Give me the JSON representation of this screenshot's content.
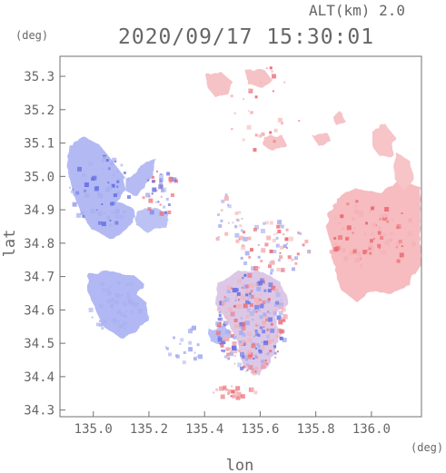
{
  "header": {
    "altitude_label": "ALT(km)  2.0",
    "timestamp": "2020/09/17 15:30:01"
  },
  "axes": {
    "x_label": "lon",
    "x_unit": "(deg)",
    "y_label": "lat",
    "y_unit": "(deg)",
    "x_ticks": [
      "135.0",
      "135.2",
      "135.4",
      "135.6",
      "135.8",
      "136.0"
    ],
    "y_ticks": [
      "35.3",
      "35.2",
      "35.1",
      "35.0",
      "34.9",
      "34.8",
      "34.7",
      "34.6",
      "34.5",
      "34.4",
      "34.3"
    ]
  },
  "chart_data": {
    "type": "heatmap",
    "x_range": [
      134.88,
      136.18
    ],
    "y_range": [
      34.28,
      35.36
    ],
    "grid": false,
    "colors": {
      "negative": "#a9b0f0",
      "positive": "#f4b2b6",
      "strong_negative": "#6a74e6",
      "strong_positive": "#ec6e76"
    },
    "x_ticks": [
      135.0,
      135.2,
      135.4,
      135.6,
      135.8,
      136.0
    ],
    "y_ticks": [
      35.3,
      35.2,
      35.1,
      35.0,
      34.9,
      34.8,
      34.7,
      34.6,
      34.5,
      34.4,
      34.3
    ]
  }
}
